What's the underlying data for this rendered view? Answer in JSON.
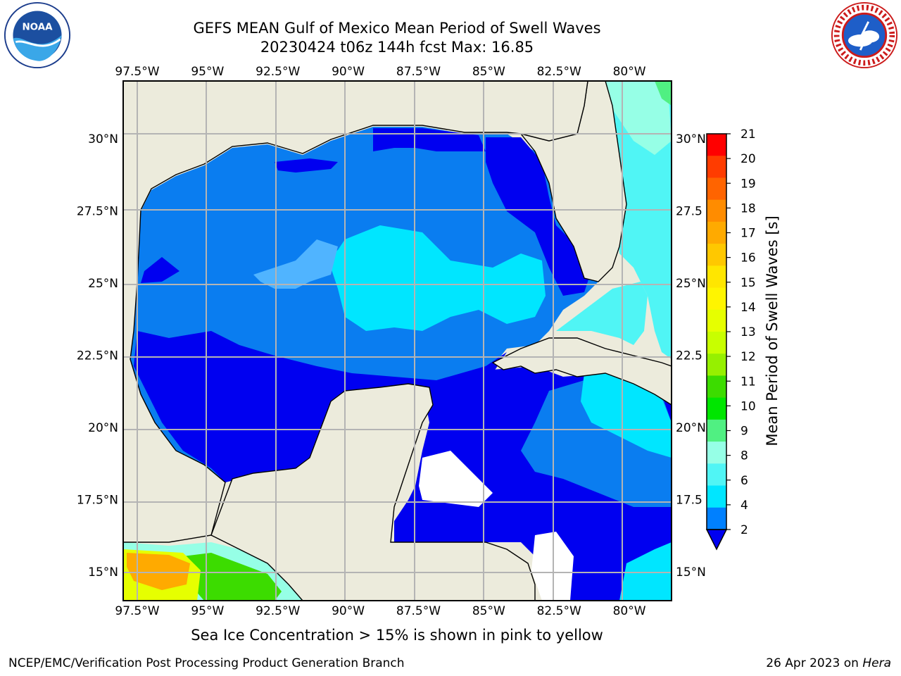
{
  "title_line1": "GEFS MEAN Gulf of Mexico Mean Period of Swell Waves",
  "title_line2": "20230424 t06z 144h fcst   Max: 16.85",
  "note": "Sea Ice Concentration > 15% is shown in pink to yellow",
  "footer_left": "NCEP/EMC/Verification Post Processing Product Generation Branch",
  "footer_date": "26 Apr 2023 on ",
  "footer_host": "Hera",
  "logos": {
    "left_icon": "noaa-logo",
    "right_icon": "nws-logo",
    "noaa_text": "NOAA",
    "nws_text": "NATIONAL WEATHER SERVICE"
  },
  "map": {
    "lon_range": [
      -98,
      -78.5
    ],
    "lat_range": [
      14,
      32
    ],
    "lon_ticks": [
      "97.5°W",
      "95°W",
      "92.5°W",
      "90°W",
      "87.5°W",
      "85°W",
      "82.5°W",
      "80°W"
    ],
    "lon_tick_values": [
      -97.5,
      -95,
      -92.5,
      -90,
      -87.5,
      -85,
      -82.5,
      -80
    ],
    "lat_ticks_left": [
      "30°N",
      "27.5°N",
      "25°N",
      "22.5°N",
      "20°N",
      "17.5°N",
      "15°N"
    ],
    "lat_ticks_right": [
      "30°N",
      "27.5",
      "25°N",
      "22.5",
      "20°N",
      "17.5",
      "15°N"
    ],
    "lat_tick_values": [
      30,
      27.5,
      25,
      22.5,
      20,
      17.5,
      15
    ],
    "colors": {
      "land": "#ecebdc",
      "grid": "#b4b4b4",
      "coast": "#000000"
    }
  },
  "colorbar": {
    "label": "Mean Period of Swell Waves [s]",
    "ticks": [
      "21",
      "20",
      "19",
      "18",
      "17",
      "16",
      "15",
      "14",
      "13",
      "12",
      "11",
      "10",
      "9",
      "8",
      "6",
      "4",
      "2"
    ],
    "colors": [
      "#ff0000",
      "#ff3c00",
      "#ff6400",
      "#ff8c00",
      "#ffaa00",
      "#ffc800",
      "#ffe600",
      "#fff500",
      "#e6ff00",
      "#c8ff00",
      "#96f000",
      "#3cdc00",
      "#00e600",
      "#50f082",
      "#96ffe6",
      "#50f5f5",
      "#00e6ff",
      "#0080ff"
    ],
    "extend_color": "#0000f0"
  }
}
